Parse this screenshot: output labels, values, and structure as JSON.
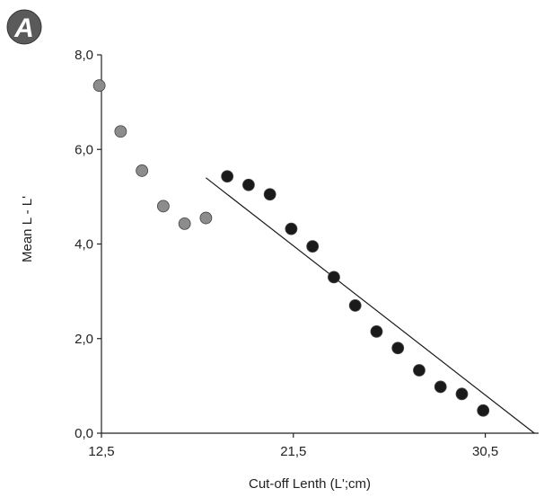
{
  "panel_label": "A",
  "chart_data": {
    "type": "scatter",
    "xlabel": "Cut-off Lenth (L';cm)",
    "ylabel": "Mean L - L'",
    "xlim": [
      12.5,
      33.0
    ],
    "ylim": [
      0,
      8.0
    ],
    "x_ticks": [
      {
        "value": 12.5,
        "label": "12,5"
      },
      {
        "value": 21.5,
        "label": "21,5"
      },
      {
        "value": 30.5,
        "label": "30,5"
      }
    ],
    "y_ticks": [
      {
        "value": 0,
        "label": "0,0"
      },
      {
        "value": 2,
        "label": "2,0"
      },
      {
        "value": 4,
        "label": "4,0"
      },
      {
        "value": 6,
        "label": "6,0"
      },
      {
        "value": 8,
        "label": "8,0"
      }
    ],
    "series": [
      {
        "color": "#8c8c8c",
        "points": [
          {
            "x": 12.4,
            "y": 7.35
          },
          {
            "x": 13.4,
            "y": 6.38
          },
          {
            "x": 14.4,
            "y": 5.55
          },
          {
            "x": 15.4,
            "y": 4.8
          },
          {
            "x": 16.4,
            "y": 4.43
          },
          {
            "x": 17.4,
            "y": 4.55
          }
        ]
      },
      {
        "color": "#1a1a1a",
        "points": [
          {
            "x": 18.4,
            "y": 5.43
          },
          {
            "x": 19.4,
            "y": 5.25
          },
          {
            "x": 20.4,
            "y": 5.05
          },
          {
            "x": 21.4,
            "y": 4.32
          },
          {
            "x": 22.4,
            "y": 3.95
          },
          {
            "x": 23.4,
            "y": 3.3
          },
          {
            "x": 24.4,
            "y": 2.7
          },
          {
            "x": 25.4,
            "y": 2.15
          },
          {
            "x": 26.4,
            "y": 1.8
          },
          {
            "x": 27.4,
            "y": 1.33
          },
          {
            "x": 28.4,
            "y": 0.98
          },
          {
            "x": 29.4,
            "y": 0.83
          },
          {
            "x": 30.4,
            "y": 0.48
          }
        ]
      }
    ],
    "trend_line": {
      "x1": 17.4,
      "y1": 5.4,
      "x2": 32.8,
      "y2": 0.0,
      "color": "#1a1a1a"
    }
  }
}
